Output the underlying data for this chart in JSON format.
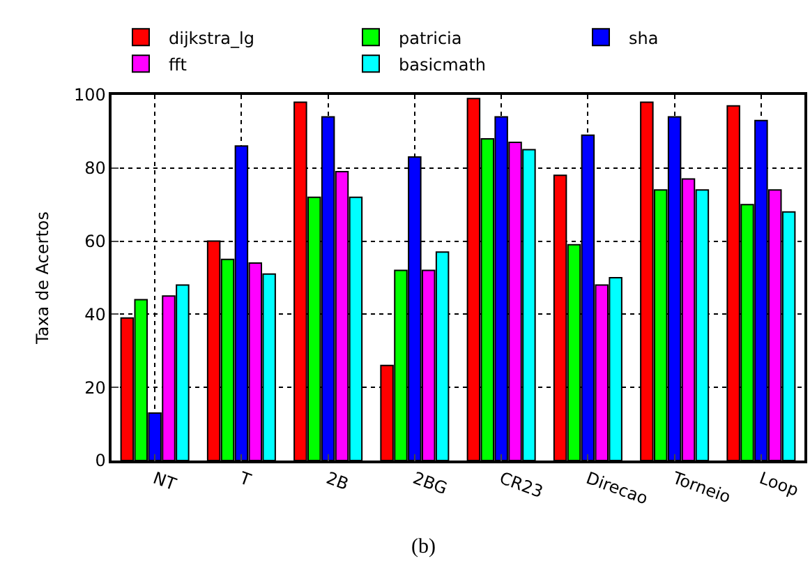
{
  "chart_data": {
    "type": "bar",
    "ylabel": "Taxa de Acertos",
    "annotations": [
      "(b)"
    ],
    "categories": [
      "NT",
      "T",
      "2B",
      "2BG",
      "CR23",
      "Direcao",
      "Torneio",
      "Loop"
    ],
    "series": [
      {
        "name": "dijkstra_lg",
        "color": "#ff0000",
        "values": [
          39,
          60,
          98,
          26,
          99,
          78,
          98,
          97
        ]
      },
      {
        "name": "patricia",
        "color": "#00ff00",
        "values": [
          44,
          55,
          72,
          52,
          88,
          59,
          74,
          70
        ]
      },
      {
        "name": "sha",
        "color": "#0000ff",
        "values": [
          13,
          86,
          94,
          83,
          94,
          89,
          94,
          93
        ]
      },
      {
        "name": "fft",
        "color": "#ff00ff",
        "values": [
          45,
          54,
          79,
          52,
          87,
          48,
          77,
          74
        ]
      },
      {
        "name": "basicmath",
        "color": "#00ffff",
        "values": [
          48,
          51,
          72,
          57,
          85,
          50,
          74,
          68
        ]
      }
    ],
    "ylim": [
      0,
      100
    ],
    "yticks": [
      0,
      20,
      40,
      60,
      80,
      100
    ],
    "grid": true,
    "legend": "top"
  }
}
